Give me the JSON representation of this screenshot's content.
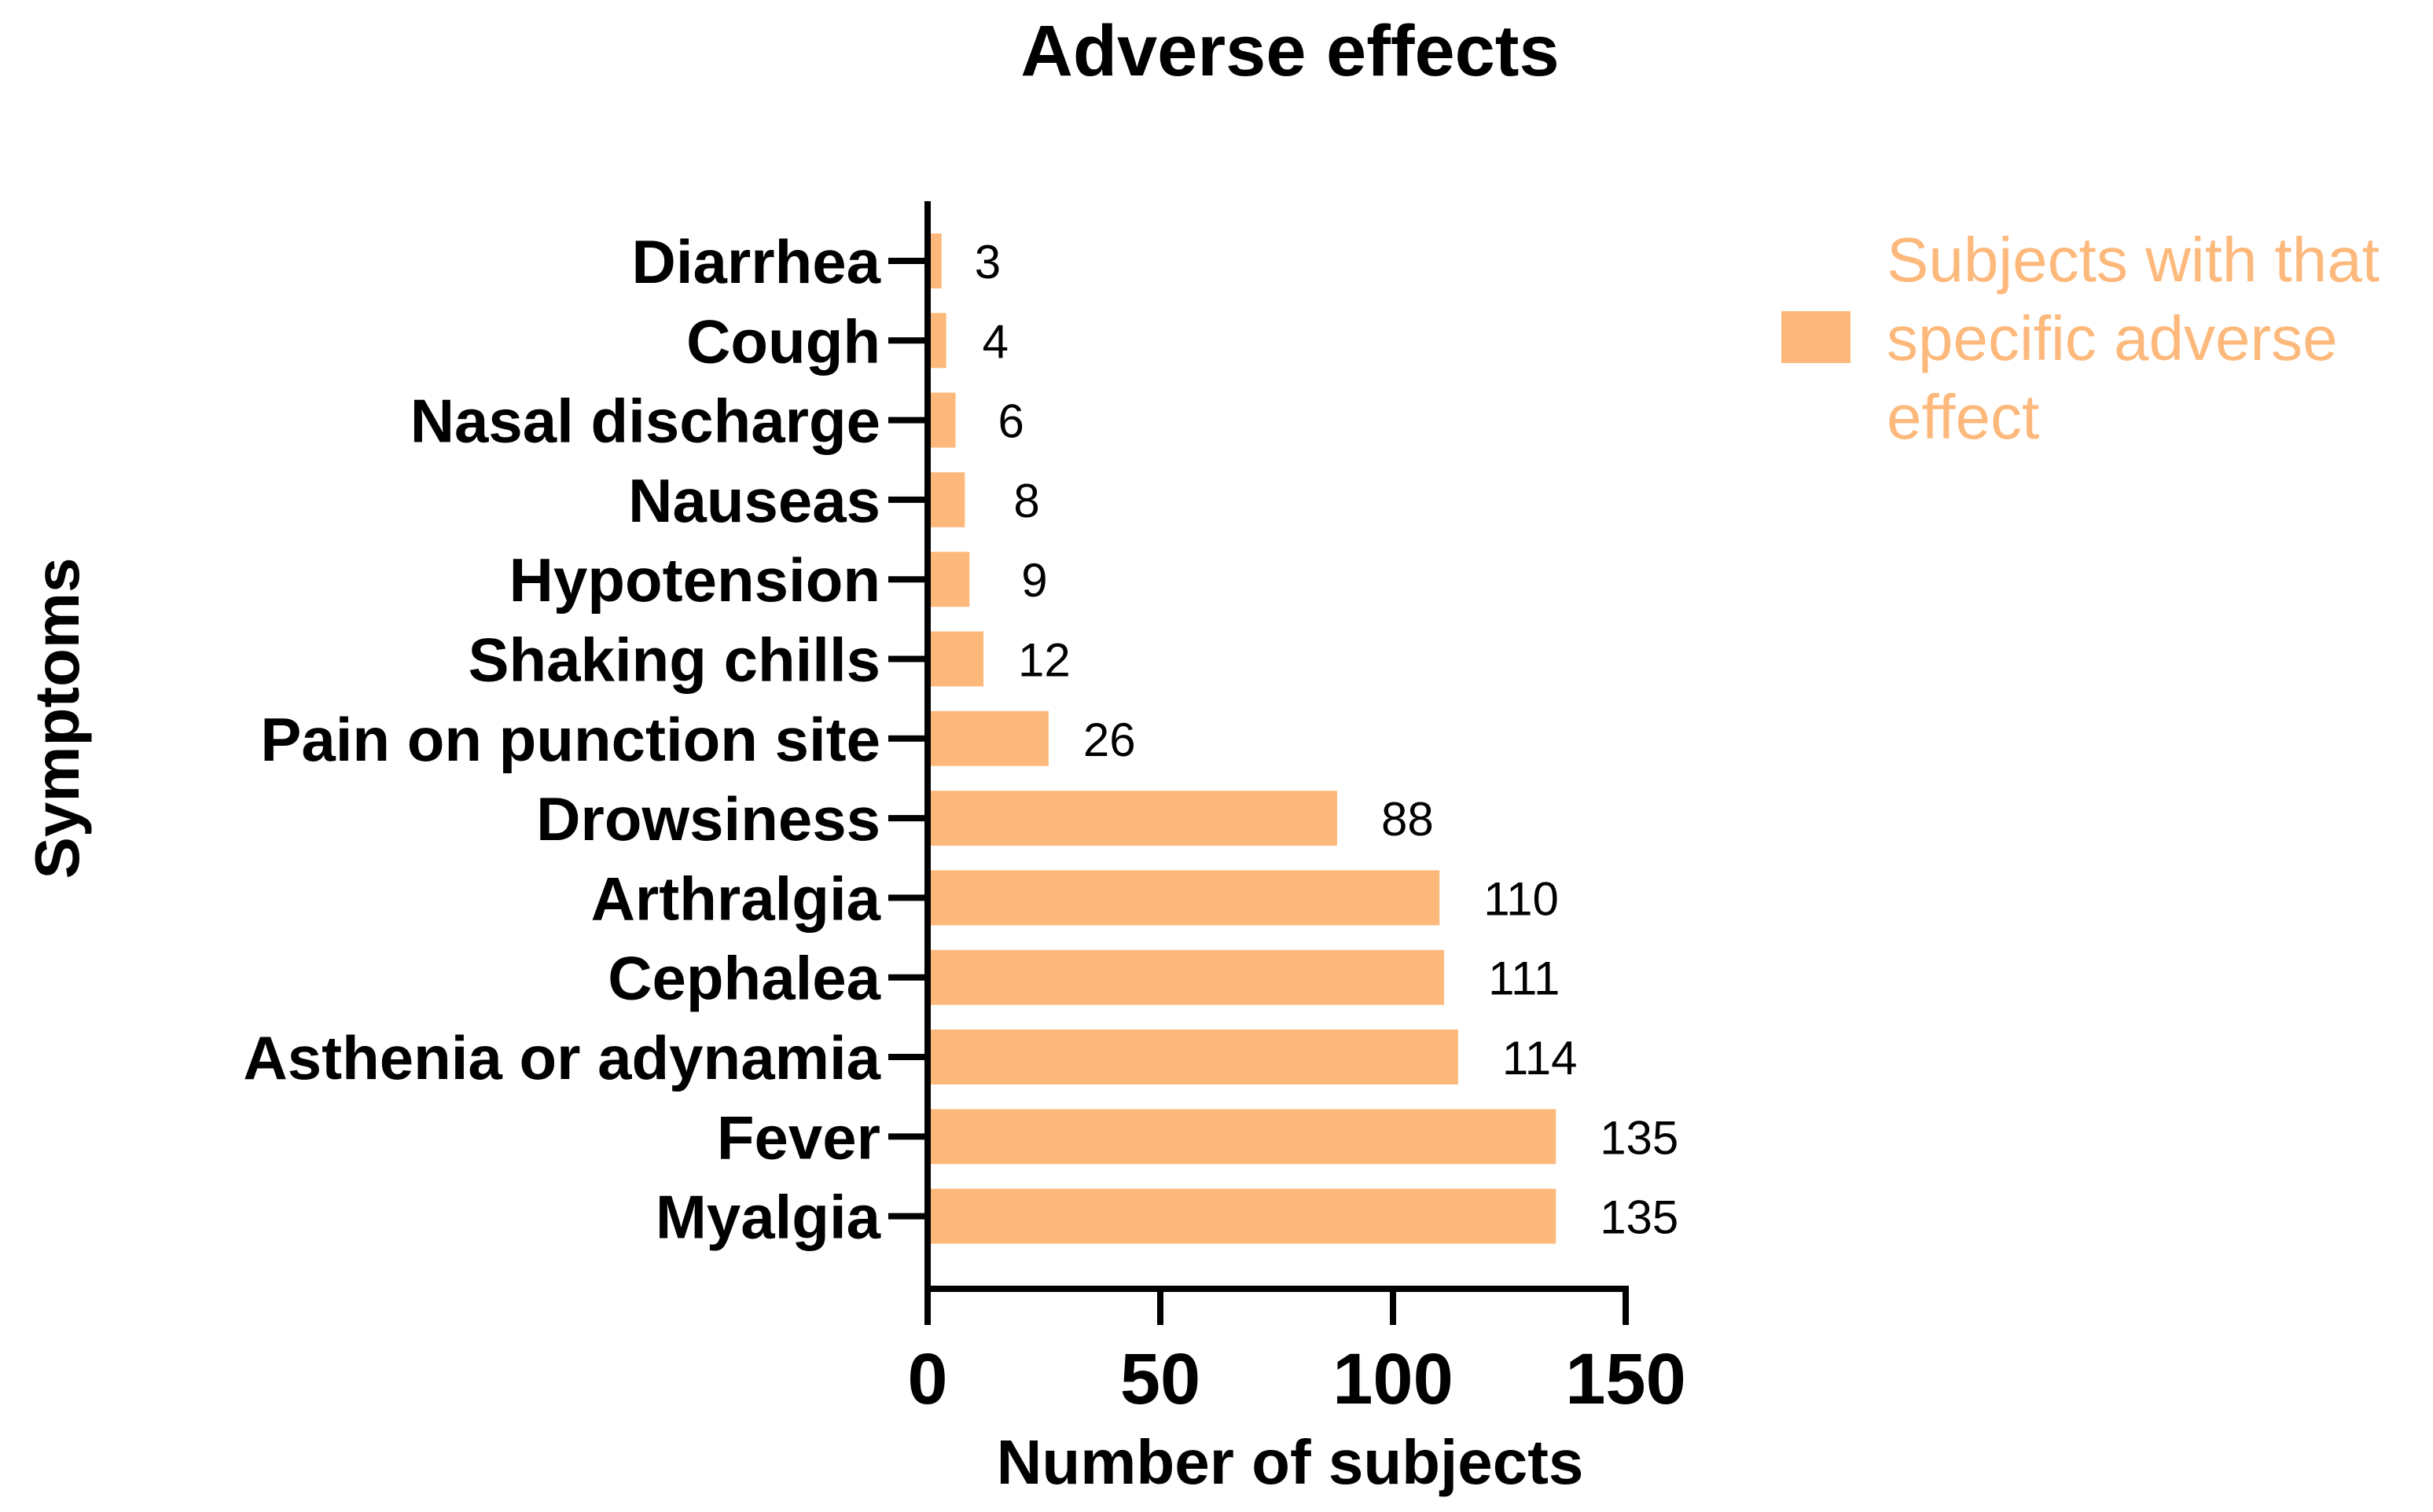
{
  "chart_data": {
    "type": "bar",
    "orientation": "horizontal",
    "title": "Adverse effects",
    "xlabel": "Number of subjects",
    "ylabel": "Symptoms",
    "xlim": [
      0,
      150
    ],
    "xticks": [
      "0",
      "50",
      "100",
      "150"
    ],
    "categories": [
      "Diarrhea",
      "Cough",
      "Nasal discharge",
      "Nauseas",
      "Hypotension",
      "Shaking chills",
      "Pain on punction site",
      "Drowsiness",
      "Arthralgia",
      "Cephalea",
      "Asthenia or adynamia",
      "Fever",
      "Myalgia"
    ],
    "values": [
      3,
      4,
      6,
      8,
      9,
      12,
      26,
      88,
      110,
      111,
      114,
      135,
      135
    ],
    "series": [
      {
        "name": "Subjects with that specific adverse effect",
        "color": "#FDB97C"
      }
    ],
    "legend": {
      "position": "right",
      "lines": [
        "Subjects with that",
        "specific adverse",
        "effect"
      ]
    },
    "grid": false
  }
}
